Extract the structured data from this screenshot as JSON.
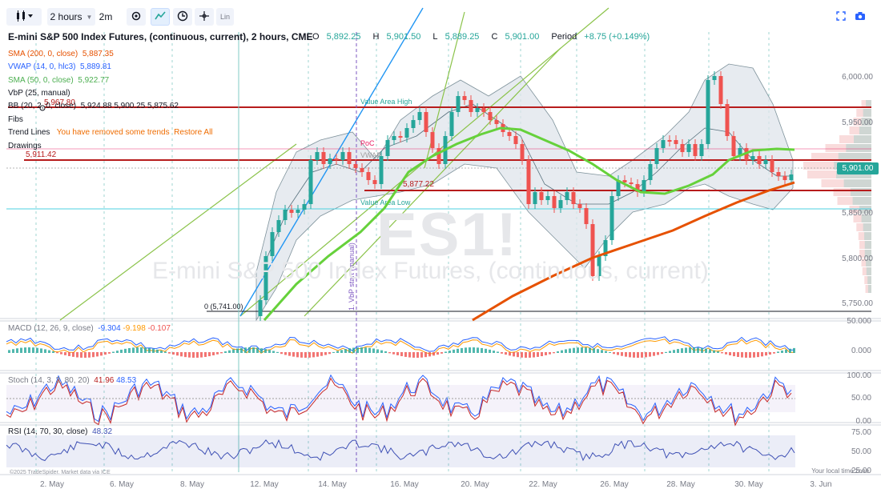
{
  "toolbar": {
    "chart_type_icon": "candles-icon",
    "interval": "2 hours",
    "interval2": "2m",
    "settings_icon": "gear-icon",
    "trend_icon": "trend-icon",
    "replay_icon": "clock-icon",
    "crosshair_icon": "crosshair-icon",
    "log_label": "Lin",
    "fullscreen_icon": "fullscreen-icon",
    "snapshot_icon": "camera-icon"
  },
  "header": {
    "title": "E-mini S&P 500 Index Futures, (continuous, current), 2 hours, CME",
    "o_label": "O",
    "o_value": "5,892.25",
    "h_label": "H",
    "h_value": "5,901.50",
    "l_label": "L",
    "l_value": "5,889.25",
    "c_label": "C",
    "c_value": "5,901.00",
    "period_label": "Period",
    "period_value": "+8.75 (+0.149%)"
  },
  "indicators": [
    {
      "label": "SMA (200, 0, close)",
      "value": "5,887.35",
      "color": "#e65100"
    },
    {
      "label": "VWAP (14, 0, hlc3)",
      "value": "5,889.81",
      "color": "#2962ff"
    },
    {
      "label": "SMA (50, 0, close)",
      "value": "5,922.77",
      "color": "#4caf50"
    },
    {
      "label": "VbP (25, manual)",
      "value": "",
      "color": "#131722"
    },
    {
      "label": "BB (20, 2, 0, close)",
      "value": "5,924.88  5,900.25  5,875.62",
      "color": "#131722"
    },
    {
      "label": "Fibs",
      "value": "",
      "color": "#131722"
    },
    {
      "label": "Trend Lines",
      "value": "You have removed some trends",
      "restore": "Restore All",
      "color": "#131722"
    },
    {
      "label": "Drawings",
      "value": "",
      "color": "#131722"
    }
  ],
  "annotations": {
    "level_high": "5,967.80",
    "level_mid": "5,911.42",
    "level_low": "5,877.22",
    "zero_label": "0 (5,741.00)",
    "value_area_high": "Value Area High",
    "value_area_low": "Value Area Low",
    "poc": "PoC",
    "vwap": "VWAP",
    "vbp_start": "1. VbP start (manual)"
  },
  "watermark": {
    "symbol": "ES1!",
    "name": "E-mini S&P 500 Index Futures, (continuous, current)"
  },
  "price_axis": [
    "6,000.00",
    "5,950.00",
    "5,900.00",
    "5,850.00",
    "5,800.00",
    "5,750.00"
  ],
  "last_price": "5,901.00",
  "macd": {
    "label": "MACD (12, 26, 9, close)",
    "v1": "-9.304",
    "v2": "-9.198",
    "v3": "-0.107",
    "axis": [
      "50.000",
      "0.000"
    ]
  },
  "stoch": {
    "label": "Stoch (14, 3, 3, 80, 20)",
    "v1": "41.96",
    "v2": "48.53",
    "axis": [
      "100.00",
      "50.00",
      "0.00"
    ]
  },
  "rsi": {
    "label": "RSI (14, 70, 30, close)",
    "value": "48.32",
    "axis": [
      "75.00",
      "50.00",
      "25.00"
    ]
  },
  "time_axis": [
    "2. May",
    "6. May",
    "8. May",
    "12. May",
    "14. May",
    "16. May",
    "20. May",
    "22. May",
    "26. May",
    "28. May",
    "30. May",
    "3. Jun"
  ],
  "footer": {
    "copyright": "©2025 TradeSpider. Market data via ICE",
    "local_time": "Your local time zone"
  },
  "colors": {
    "up": "#26a69a",
    "down": "#ef5350",
    "resistance": "#b71c1c",
    "sma50": "#66d13b",
    "sma200": "#e65100",
    "vwap": "#2196f3",
    "bb_fill": "#dfe5ec"
  }
}
